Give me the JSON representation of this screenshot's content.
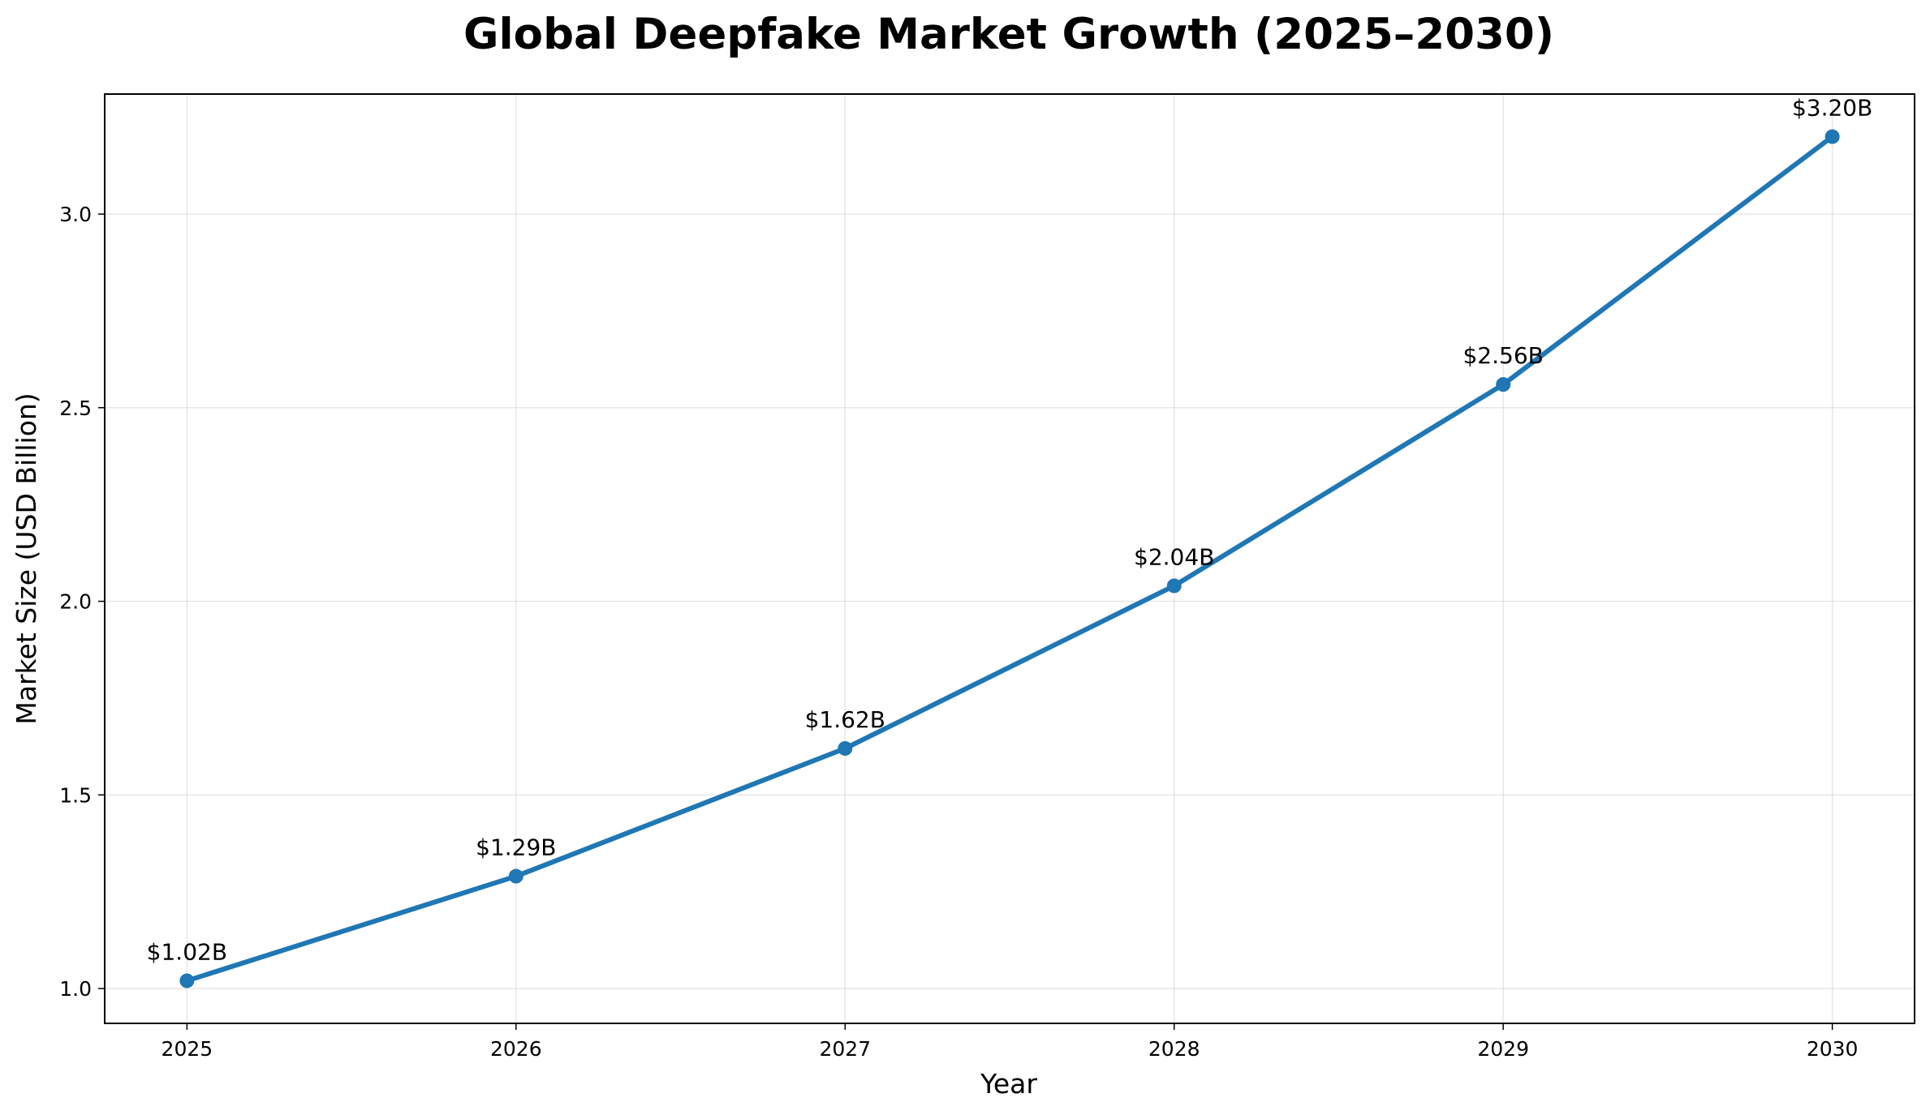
{
  "chart_data": {
    "type": "line",
    "title": "Global Deepfake Market Growth (2025–2030)",
    "xlabel": "Year",
    "ylabel": "Market Size (USD Billion)",
    "x": [
      2025,
      2026,
      2027,
      2028,
      2029,
      2030
    ],
    "xtick_labels": [
      "2025",
      "2026",
      "2027",
      "2028",
      "2029",
      "2030"
    ],
    "values": [
      1.02,
      1.29,
      1.62,
      2.04,
      2.56,
      3.2
    ],
    "data_labels": [
      "$1.02B",
      "$1.29B",
      "$1.62B",
      "$2.04B",
      "$2.56B",
      "$3.20B"
    ],
    "yticks": [
      1.0,
      1.5,
      2.0,
      2.5,
      3.0
    ],
    "ytick_labels": [
      "1.0",
      "1.5",
      "2.0",
      "2.5",
      "3.0"
    ],
    "xlim": [
      2024.75,
      2030.25
    ],
    "ylim": [
      0.91,
      3.31
    ],
    "grid": true,
    "line_color": "#1f77b4",
    "marker": "circle"
  }
}
